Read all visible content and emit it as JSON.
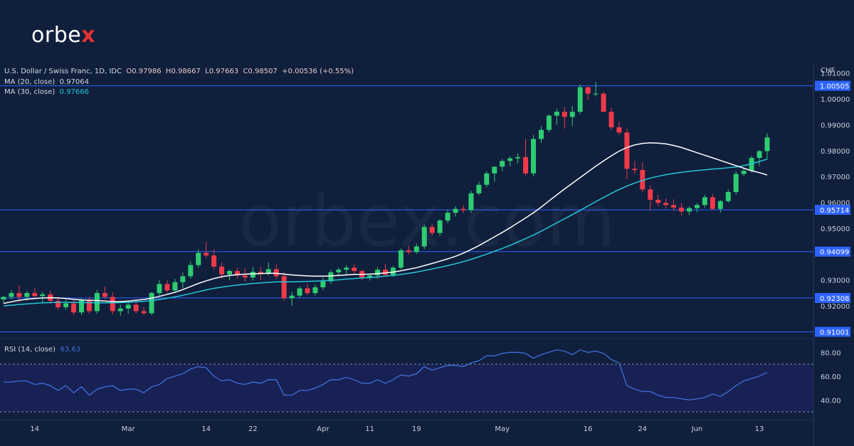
{
  "brand": {
    "logo_prefix": "orbe",
    "logo_x": "x",
    "watermark": "orbex.com",
    "accent": "#e8322f"
  },
  "header": {
    "symbol": "U.S. Dollar / Swiss Franc, 1D, IDC",
    "ohlc": {
      "open": "O0.97986",
      "high": "H0.98667",
      "low": "L0.97663",
      "close": "C0.98507",
      "change": "+0.00536 (+0.55%)"
    },
    "ma20": {
      "label": "MA (20, close)",
      "value": "0.97064"
    },
    "ma30": {
      "label": "MA (30, close)",
      "value": "0.97666"
    }
  },
  "rsi_panel": {
    "label": "RSI (14, close)",
    "value": "63.63"
  },
  "colors": {
    "background": "#0f1f3c",
    "up": "#26a69a",
    "up_bright": "#2ecc71",
    "down": "#ef3a4a",
    "ma20": "#ffffff",
    "ma30": "#26c6da",
    "levels": "#2d62ff",
    "rsi": "#3f6fd8"
  },
  "chart_data": [
    {
      "type": "candlestick",
      "currency": "CHF",
      "x_tick_labels": [
        "14",
        "Mar",
        "14",
        "22",
        "Apr",
        "11",
        "19",
        "May",
        "16",
        "24",
        "Jun",
        "13"
      ],
      "y_tick_labels": [
        "1.01000",
        "1.00000",
        "0.99000",
        "0.98000",
        "0.97000",
        "0.96000",
        "0.95000",
        "0.93000",
        "0.92000"
      ],
      "ylim": [
        0.9085,
        1.014
      ],
      "horizontal_levels": [
        1.00505,
        0.95714,
        0.94099,
        0.92308,
        0.91001
      ],
      "level_labels": [
        "1.00505",
        "0.95714",
        "0.94099",
        "0.92308",
        "0.91001"
      ],
      "candles": [
        [
          0.9225,
          0.9238,
          0.9212,
          0.9235
        ],
        [
          0.9235,
          0.9262,
          0.9225,
          0.925
        ],
        [
          0.925,
          0.928,
          0.9215,
          0.9235
        ],
        [
          0.9235,
          0.9258,
          0.9222,
          0.925
        ],
        [
          0.925,
          0.927,
          0.9235,
          0.9238
        ],
        [
          0.9238,
          0.9255,
          0.9215,
          0.9245
        ],
        [
          0.9245,
          0.9258,
          0.9208,
          0.922
        ],
        [
          0.922,
          0.9235,
          0.9185,
          0.9195
        ],
        [
          0.9195,
          0.9225,
          0.9185,
          0.921
        ],
        [
          0.921,
          0.9228,
          0.9165,
          0.9175
        ],
        [
          0.9175,
          0.923,
          0.9165,
          0.9222
        ],
        [
          0.9222,
          0.9235,
          0.917,
          0.918
        ],
        [
          0.918,
          0.9262,
          0.917,
          0.925
        ],
        [
          0.925,
          0.9275,
          0.9228,
          0.9235
        ],
        [
          0.9235,
          0.9252,
          0.9168,
          0.918
        ],
        [
          0.918,
          0.9205,
          0.9162,
          0.919
        ],
        [
          0.919,
          0.9215,
          0.917,
          0.9205
        ],
        [
          0.9205,
          0.922,
          0.917,
          0.918
        ],
        [
          0.918,
          0.9195,
          0.9165,
          0.9172
        ],
        [
          0.9172,
          0.9255,
          0.9165,
          0.925
        ],
        [
          0.925,
          0.93,
          0.9238,
          0.9285
        ],
        [
          0.9285,
          0.93,
          0.9252,
          0.926
        ],
        [
          0.926,
          0.9305,
          0.9252,
          0.9292
        ],
        [
          0.9292,
          0.933,
          0.9268,
          0.9315
        ],
        [
          0.9315,
          0.9372,
          0.9305,
          0.9358
        ],
        [
          0.9358,
          0.9418,
          0.9348,
          0.9405
        ],
        [
          0.9405,
          0.9448,
          0.9385,
          0.9395
        ],
        [
          0.9395,
          0.942,
          0.934,
          0.9352
        ],
        [
          0.9352,
          0.9368,
          0.9305,
          0.9322
        ],
        [
          0.9322,
          0.934,
          0.93,
          0.9335
        ],
        [
          0.9335,
          0.9348,
          0.9305,
          0.9318
        ],
        [
          0.9318,
          0.9345,
          0.9295,
          0.931
        ],
        [
          0.931,
          0.935,
          0.9298,
          0.9332
        ],
        [
          0.9332,
          0.9352,
          0.93,
          0.9325
        ],
        [
          0.9325,
          0.9368,
          0.9318,
          0.9342
        ],
        [
          0.9342,
          0.9362,
          0.9305,
          0.9315
        ],
        [
          0.9315,
          0.933,
          0.922,
          0.923
        ],
        [
          0.923,
          0.9255,
          0.92,
          0.924
        ],
        [
          0.924,
          0.9275,
          0.9232,
          0.9268
        ],
        [
          0.9268,
          0.9285,
          0.9242,
          0.925
        ],
        [
          0.925,
          0.9282,
          0.924,
          0.9272
        ],
        [
          0.9272,
          0.931,
          0.9262,
          0.9295
        ],
        [
          0.9295,
          0.934,
          0.9285,
          0.933
        ],
        [
          0.933,
          0.9348,
          0.9315,
          0.934
        ],
        [
          0.934,
          0.9358,
          0.932,
          0.9348
        ],
        [
          0.9348,
          0.9362,
          0.9325,
          0.9335
        ],
        [
          0.9335,
          0.9342,
          0.93,
          0.931
        ],
        [
          0.931,
          0.9325,
          0.9298,
          0.9318
        ],
        [
          0.9318,
          0.935,
          0.9305,
          0.934
        ],
        [
          0.934,
          0.9362,
          0.9315,
          0.932
        ],
        [
          0.932,
          0.9355,
          0.9312,
          0.9348
        ],
        [
          0.9348,
          0.9422,
          0.9342,
          0.9415
        ],
        [
          0.9415,
          0.9432,
          0.9398,
          0.9408
        ],
        [
          0.9408,
          0.944,
          0.9402,
          0.943
        ],
        [
          0.943,
          0.9515,
          0.942,
          0.9505
        ],
        [
          0.9505,
          0.9518,
          0.9472,
          0.9482
        ],
        [
          0.9482,
          0.9535,
          0.947,
          0.953
        ],
        [
          0.953,
          0.9572,
          0.952,
          0.956
        ],
        [
          0.956,
          0.9585,
          0.9545,
          0.9575
        ],
        [
          0.9575,
          0.959,
          0.9558,
          0.957
        ],
        [
          0.957,
          0.9645,
          0.956,
          0.9635
        ],
        [
          0.9635,
          0.968,
          0.9628,
          0.9668
        ],
        [
          0.9668,
          0.972,
          0.9658,
          0.9712
        ],
        [
          0.9712,
          0.973,
          0.968,
          0.9738
        ],
        [
          0.9738,
          0.9768,
          0.972,
          0.976
        ],
        [
          0.976,
          0.9778,
          0.974,
          0.977
        ],
        [
          0.977,
          0.979,
          0.975,
          0.9775
        ],
        [
          0.9775,
          0.9845,
          0.9705,
          0.9712
        ],
        [
          0.9712,
          0.986,
          0.97,
          0.9845
        ],
        [
          0.9845,
          0.9895,
          0.983,
          0.988
        ],
        [
          0.988,
          0.994,
          0.987,
          0.9935
        ],
        [
          0.9935,
          0.9962,
          0.99,
          0.995
        ],
        [
          0.995,
          0.9968,
          0.9885,
          0.993
        ],
        [
          0.993,
          0.9972,
          0.9895,
          0.995
        ],
        [
          0.995,
          1.0055,
          0.994,
          1.0045
        ],
        [
          1.0045,
          1.004,
          0.9995,
          1.002
        ],
        [
          1.002,
          1.0065,
          1.001,
          1.002
        ],
        [
          1.002,
          1.0028,
          0.9955,
          0.995
        ],
        [
          0.995,
          0.9965,
          0.988,
          0.989
        ],
        [
          0.989,
          0.9912,
          0.9862,
          0.987
        ],
        [
          0.987,
          0.9885,
          0.969,
          0.973
        ],
        [
          0.973,
          0.976,
          0.971,
          0.9725
        ],
        [
          0.9725,
          0.9755,
          0.964,
          0.965
        ],
        [
          0.965,
          0.9665,
          0.957,
          0.961
        ],
        [
          0.961,
          0.963,
          0.9585,
          0.9598
        ],
        [
          0.9598,
          0.9615,
          0.9575,
          0.959
        ],
        [
          0.959,
          0.9612,
          0.9568,
          0.958
        ],
        [
          0.958,
          0.9598,
          0.955,
          0.9565
        ],
        [
          0.9565,
          0.9585,
          0.9552,
          0.9578
        ],
        [
          0.9578,
          0.9598,
          0.9562,
          0.959
        ],
        [
          0.959,
          0.963,
          0.958,
          0.962
        ],
        [
          0.962,
          0.9632,
          0.957,
          0.9575
        ],
        [
          0.9575,
          0.961,
          0.956,
          0.9605
        ],
        [
          0.9605,
          0.965,
          0.9598,
          0.964
        ],
        [
          0.964,
          0.972,
          0.963,
          0.971
        ],
        [
          0.971,
          0.973,
          0.97,
          0.9722
        ],
        [
          0.9722,
          0.978,
          0.9715,
          0.9772
        ],
        [
          0.9772,
          0.9802,
          0.974,
          0.9798
        ],
        [
          0.9798,
          0.9867,
          0.9766,
          0.9851
        ]
      ],
      "ma20": [
        0.921,
        0.9216,
        0.9222,
        0.9226,
        0.9229,
        0.9231,
        0.9232,
        0.9231,
        0.9229,
        0.9226,
        0.9223,
        0.9222,
        0.9221,
        0.9219,
        0.9217,
        0.9217,
        0.9219,
        0.9222,
        0.9225,
        0.923,
        0.9237,
        0.9245,
        0.9253,
        0.9263,
        0.9275,
        0.9287,
        0.9297,
        0.9306,
        0.9313,
        0.9318,
        0.9321,
        0.9323,
        0.9324,
        0.9325,
        0.9326,
        0.9326,
        0.9323,
        0.932,
        0.9318,
        0.9316,
        0.9315,
        0.9315,
        0.9316,
        0.9318,
        0.932,
        0.9322,
        0.9322,
        0.9323,
        0.9325,
        0.9328,
        0.9331,
        0.9336,
        0.9342,
        0.9348,
        0.9356,
        0.9364,
        0.9373,
        0.9382,
        0.9392,
        0.9404,
        0.9418,
        0.9433,
        0.945,
        0.9467,
        0.9484,
        0.9502,
        0.9521,
        0.954,
        0.956,
        0.9582,
        0.9606,
        0.9629,
        0.9652,
        0.9674,
        0.9696,
        0.9718,
        0.974,
        0.976,
        0.978,
        0.9798,
        0.9812,
        0.9822,
        0.9828,
        0.983,
        0.9829,
        0.9826,
        0.982,
        0.9812,
        0.9802,
        0.9792,
        0.9782,
        0.9772,
        0.9762,
        0.9752,
        0.9742,
        0.9732,
        0.9722,
        0.9715,
        0.9706
      ],
      "ma30": [
        0.92,
        0.9203,
        0.9206,
        0.9208,
        0.921,
        0.9212,
        0.9213,
        0.9214,
        0.9214,
        0.9214,
        0.9213,
        0.9213,
        0.9212,
        0.9212,
        0.9212,
        0.9213,
        0.9214,
        0.9216,
        0.9218,
        0.9221,
        0.9225,
        0.923,
        0.9235,
        0.9241,
        0.9248,
        0.9255,
        0.9262,
        0.9268,
        0.9273,
        0.9277,
        0.9281,
        0.9284,
        0.9287,
        0.9289,
        0.9291,
        0.9293,
        0.9293,
        0.9293,
        0.9294,
        0.9295,
        0.9296,
        0.9297,
        0.9299,
        0.9301,
        0.9304,
        0.9306,
        0.9308,
        0.931,
        0.9312,
        0.9315,
        0.9318,
        0.9322,
        0.9326,
        0.9331,
        0.9337,
        0.9343,
        0.9349,
        0.9356,
        0.9363,
        0.9371,
        0.938,
        0.939,
        0.94,
        0.9411,
        0.9422,
        0.9434,
        0.9447,
        0.946,
        0.9474,
        0.9489,
        0.9505,
        0.9521,
        0.9537,
        0.9553,
        0.9569,
        0.9586,
        0.9603,
        0.9619,
        0.9635,
        0.965,
        0.9663,
        0.9675,
        0.9685,
        0.9694,
        0.9701,
        0.9707,
        0.9712,
        0.9716,
        0.972,
        0.9723,
        0.9726,
        0.9729,
        0.9731,
        0.9734,
        0.9737,
        0.9742,
        0.975,
        0.9758,
        0.9767
      ],
      "rsi": [
        55,
        55,
        56,
        56,
        53,
        54,
        52,
        48,
        52,
        46,
        51,
        44,
        49,
        51,
        52,
        48,
        49,
        49,
        46,
        51,
        53,
        58,
        60,
        62,
        66,
        68,
        67,
        60,
        56,
        57,
        54,
        53,
        55,
        54,
        57,
        57,
        44,
        44,
        48,
        48,
        50,
        53,
        57,
        57,
        59,
        57,
        54,
        54,
        57,
        54,
        57,
        61,
        60,
        62,
        68,
        65,
        67,
        69,
        69,
        68,
        71,
        73,
        77,
        77,
        79,
        80,
        80,
        79,
        75,
        78,
        80,
        82,
        81,
        78,
        82,
        80,
        81,
        79,
        74,
        71,
        52,
        49,
        47,
        47,
        44,
        42,
        42,
        41,
        40,
        41,
        42,
        45,
        43,
        47,
        52,
        56,
        58,
        60,
        63
      ],
      "rsi_tick_labels": [
        "80.00",
        "60.00",
        "40.00"
      ],
      "rsi_bands": [
        70,
        30
      ],
      "grid": false
    }
  ]
}
